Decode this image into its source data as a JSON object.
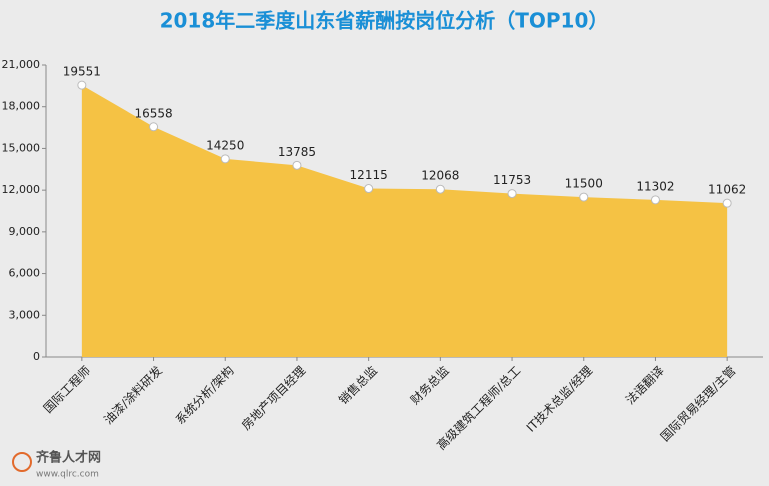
{
  "chart_data": {
    "type": "area",
    "title": "2018年二季度山东省薪酬按岗位分析（TOP10）",
    "categories": [
      "国际工程师",
      "油漆/涂料研发",
      "系统分析/架构",
      "房地产项目经理",
      "销售总监",
      "财务总监",
      "高级建筑工程师/总工",
      "IT技术总监/经理",
      "法语翻译",
      "国际贸易经理/主管"
    ],
    "values": [
      19551,
      16558,
      14250,
      13785,
      12115,
      12068,
      11753,
      11500,
      11302,
      11062
    ],
    "color": "#f5c244",
    "ylim": [
      0,
      21000
    ],
    "yticks": [
      0,
      {
        "value": 3000,
        "label": "3,000"
      },
      {
        "value": 6000,
        "label": "6,000"
      },
      {
        "value": 9000,
        "label": "9,000"
      },
      {
        "value": 12000,
        "label": "12,000"
      },
      {
        "value": 15000,
        "label": "15,000"
      },
      {
        "value": 18000,
        "label": "18,000"
      },
      {
        "value": 21000,
        "label": "21,000"
      }
    ]
  },
  "watermark": {
    "brand": "齐鲁人才网",
    "url": "www.qlrc.com"
  }
}
